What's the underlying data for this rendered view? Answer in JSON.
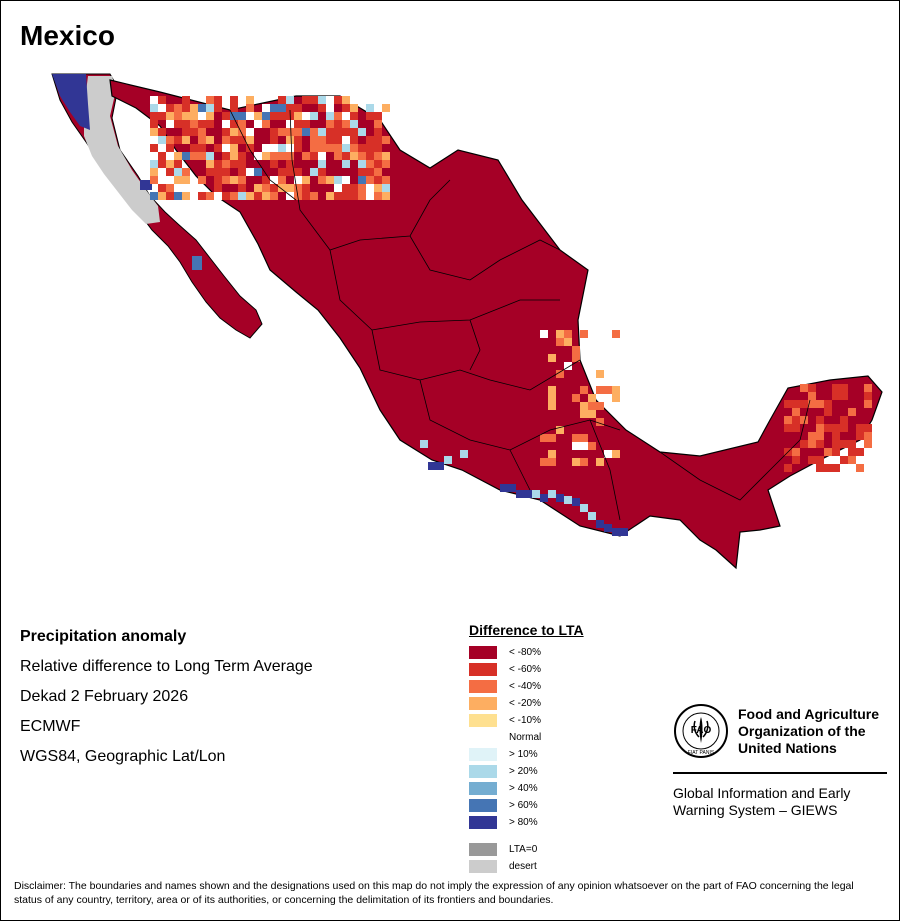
{
  "map": {
    "title": "Mexico"
  },
  "info": {
    "heading": "Precipitation anomaly",
    "line1": "Relative difference to Long Term Average",
    "line2": "Dekad 2 February 2026",
    "line3": "ECMWF",
    "line4": "WGS84, Geographic Lat/Lon"
  },
  "legend": {
    "title": "Difference to LTA",
    "items": [
      {
        "label": "< -80%",
        "color": "#a50026"
      },
      {
        "label": "< -60%",
        "color": "#d73027"
      },
      {
        "label": "< -40%",
        "color": "#f46d43"
      },
      {
        "label": "< -20%",
        "color": "#fdae61"
      },
      {
        "label": "< -10%",
        "color": "#fee090"
      },
      {
        "label": "Normal",
        "color": "#ffffff"
      },
      {
        "label": "> 10%",
        "color": "#e0f3f8"
      },
      {
        "label": "> 20%",
        "color": "#abd9e9"
      },
      {
        "label": "> 40%",
        "color": "#74add1"
      },
      {
        "label": "> 60%",
        "color": "#4575b4"
      },
      {
        "label": "> 80%",
        "color": "#313695"
      },
      {
        "label": "LTA=0",
        "color": "#999999"
      },
      {
        "label": "desert",
        "color": "#cccccc"
      }
    ]
  },
  "fao": {
    "name_line1": "Food and Agriculture",
    "name_line2": "Organization of the",
    "name_line3": "United Nations",
    "logo_text": "FAO",
    "logo_motto": "FIAT PANIS",
    "giews_line1": "Global Information and Early",
    "giews_line2": "Warning System – GIEWS"
  },
  "disclaimer": {
    "text": "Disclaimer: The boundaries and names shown and the designations used on this map do not imply the expression of any opinion whatsoever on the part of FAO concerning the legal status of any country, territory, area or of its authorities, or concerning the delimitation of its frontiers and boundaries."
  }
}
